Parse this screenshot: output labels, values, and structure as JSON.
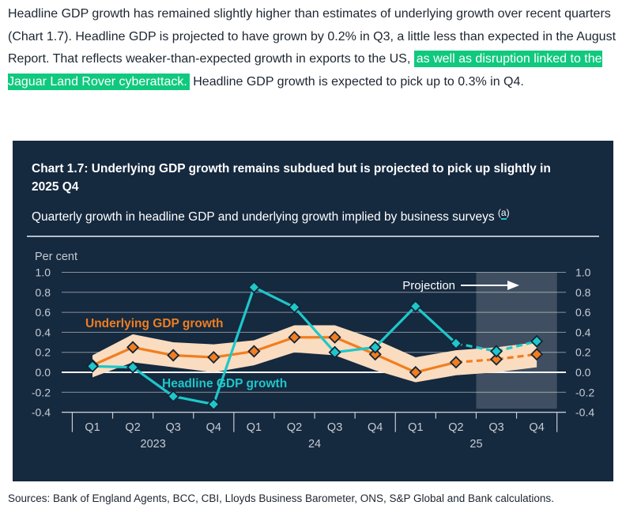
{
  "paragraph": {
    "before_highlight": "Headline GDP growth has remained slightly higher than estimates of underlying growth over recent quarters (Chart 1.7). Headline GDP is projected to have grown by 0.2% in Q3, a little less than expected in the August Report. That reflects weaker-than-expected growth in exports to the US, ",
    "highlight": "as well as disruption linked to the Jaguar Land Rover cyberattack.",
    "after_highlight": " Headline GDP growth is expected to pick up to 0.3% in Q4."
  },
  "panel": {
    "title": "Chart 1.7: Underlying GDP growth remains subdued but is projected to pick up slightly in 2025 Q4",
    "subtitle": "Quarterly growth in headline GDP and underlying growth implied by business surveys",
    "footnote": {
      "open": "(",
      "letter": "a",
      "close": ")"
    }
  },
  "sources": "Sources: Bank of England Agents, BCC, CBI, Lloyds Business Barometer, ONS, S&P Global and Bank calculations.",
  "colors": {
    "text": "#1C2631",
    "highlight": "#10C97E",
    "panel_bg": "#15293F",
    "teal": "#1EC7C9",
    "orange": "#F07E20",
    "band": "#FADCC0",
    "grid": "#8A929B",
    "zero_line": "#F5F7F8",
    "axis": "#C6CCD3",
    "divider": "#B7BEC6",
    "marker_outline": "#132438"
  },
  "chart_data": {
    "type": "line",
    "unit_label": "Per cent",
    "x_quarters": [
      "Q1",
      "Q2",
      "Q3",
      "Q4",
      "Q1",
      "Q2",
      "Q3",
      "Q4",
      "Q1",
      "Q2",
      "Q3",
      "Q4"
    ],
    "year_labels": [
      "2023",
      "24",
      "25"
    ],
    "y_ticks": [
      1.0,
      0.8,
      0.6,
      0.4,
      0.2,
      0.0,
      -0.2,
      -0.4
    ],
    "ylim": [
      -0.4,
      1.0
    ],
    "grid": true,
    "projection_label": "Projection",
    "projection_start_index": 10,
    "solid_until_index": 9,
    "series": [
      {
        "name": "Underlying GDP growth",
        "color_key": "orange",
        "values": [
          0.07,
          0.25,
          0.17,
          0.15,
          0.21,
          0.35,
          0.35,
          0.18,
          0.0,
          0.1,
          0.13,
          0.18
        ]
      },
      {
        "name": "Headline GDP growth",
        "color_key": "teal",
        "values": [
          0.06,
          0.05,
          -0.24,
          -0.32,
          0.85,
          0.65,
          0.2,
          0.25,
          0.66,
          0.29,
          0.21,
          0.31
        ]
      }
    ],
    "band": {
      "around_series": "Underlying GDP growth",
      "upper": [
        0.17,
        0.38,
        0.3,
        0.28,
        0.32,
        0.47,
        0.47,
        0.33,
        0.15,
        0.22,
        0.25,
        0.3
      ],
      "lower": [
        -0.05,
        0.1,
        0.05,
        0.0,
        0.07,
        0.2,
        0.17,
        0.02,
        -0.1,
        -0.03,
        0.0,
        0.05
      ]
    }
  }
}
